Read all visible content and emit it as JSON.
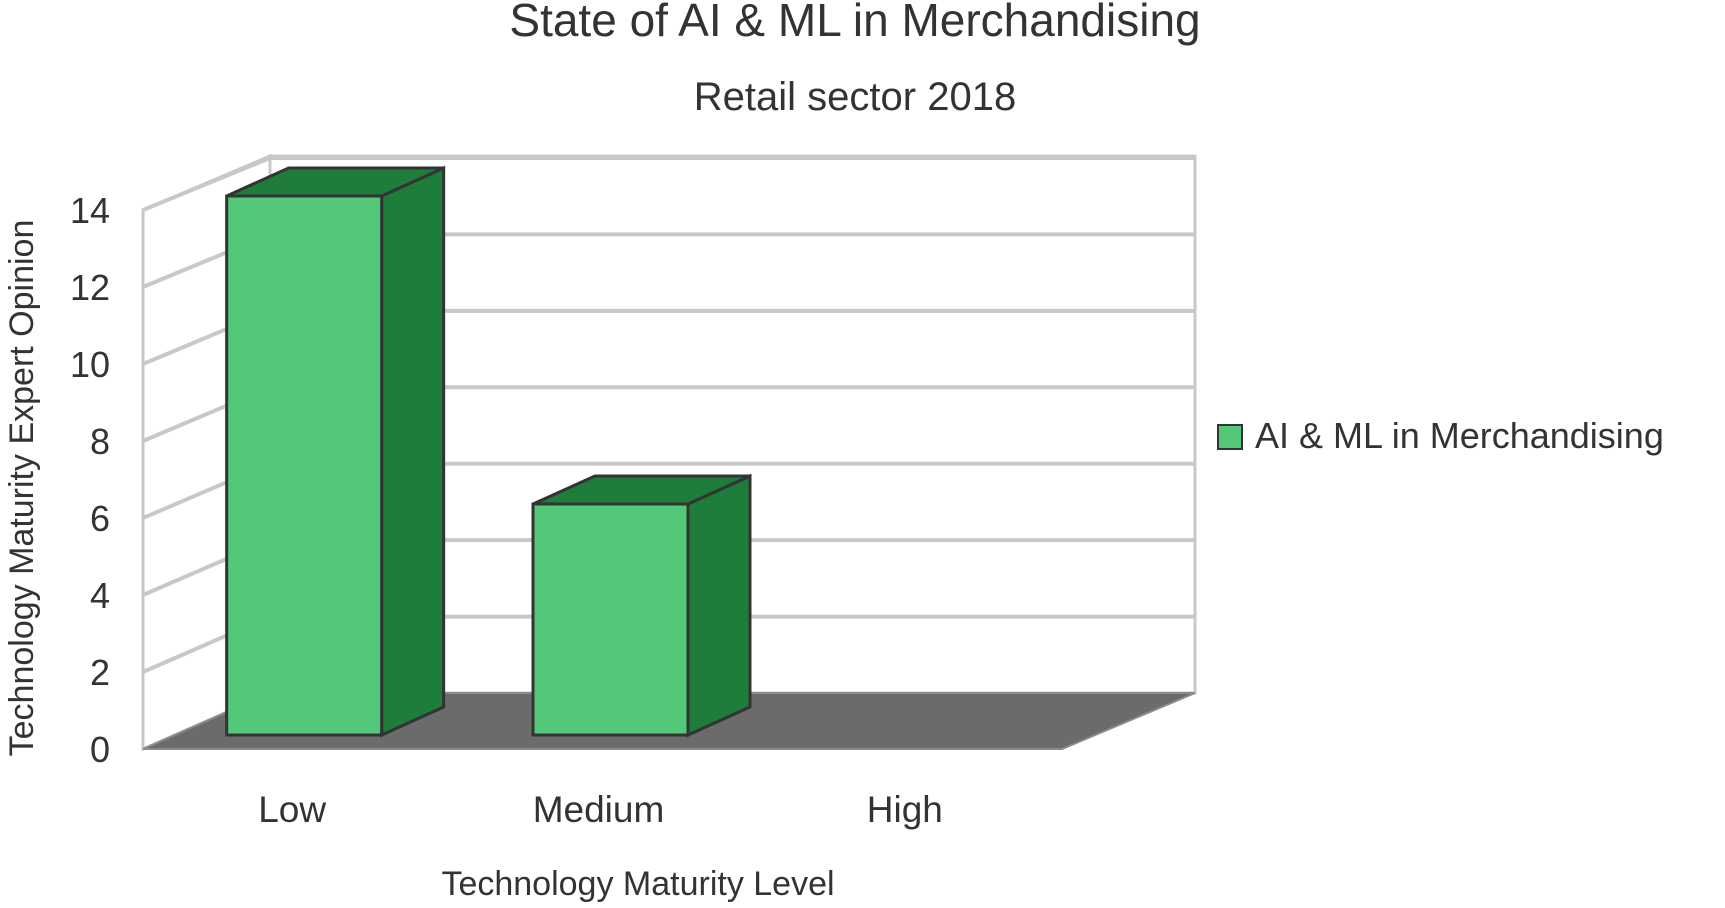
{
  "chart_data": {
    "type": "bar",
    "title": "State of AI & ML in Merchandising",
    "subtitle": "Retail sector 2018",
    "xlabel": "Technology Maturity Level",
    "ylabel": "Technology Maturity Expert Opinion",
    "categories": [
      "Low",
      "Medium",
      "High"
    ],
    "series": [
      {
        "name": "AI & ML in Merchandising",
        "values": [
          14,
          6,
          0
        ],
        "color": "#52c878",
        "side_color": "#1e7d3a"
      }
    ],
    "ylim": [
      0,
      14
    ],
    "yticks": [
      0,
      2,
      4,
      6,
      8,
      10,
      12,
      14
    ],
    "grid": true,
    "legend": "right",
    "style": "3d-column"
  },
  "colors": {
    "floor": "#6b6b6b",
    "grid": "#c8c8c8",
    "text": "#333333"
  }
}
